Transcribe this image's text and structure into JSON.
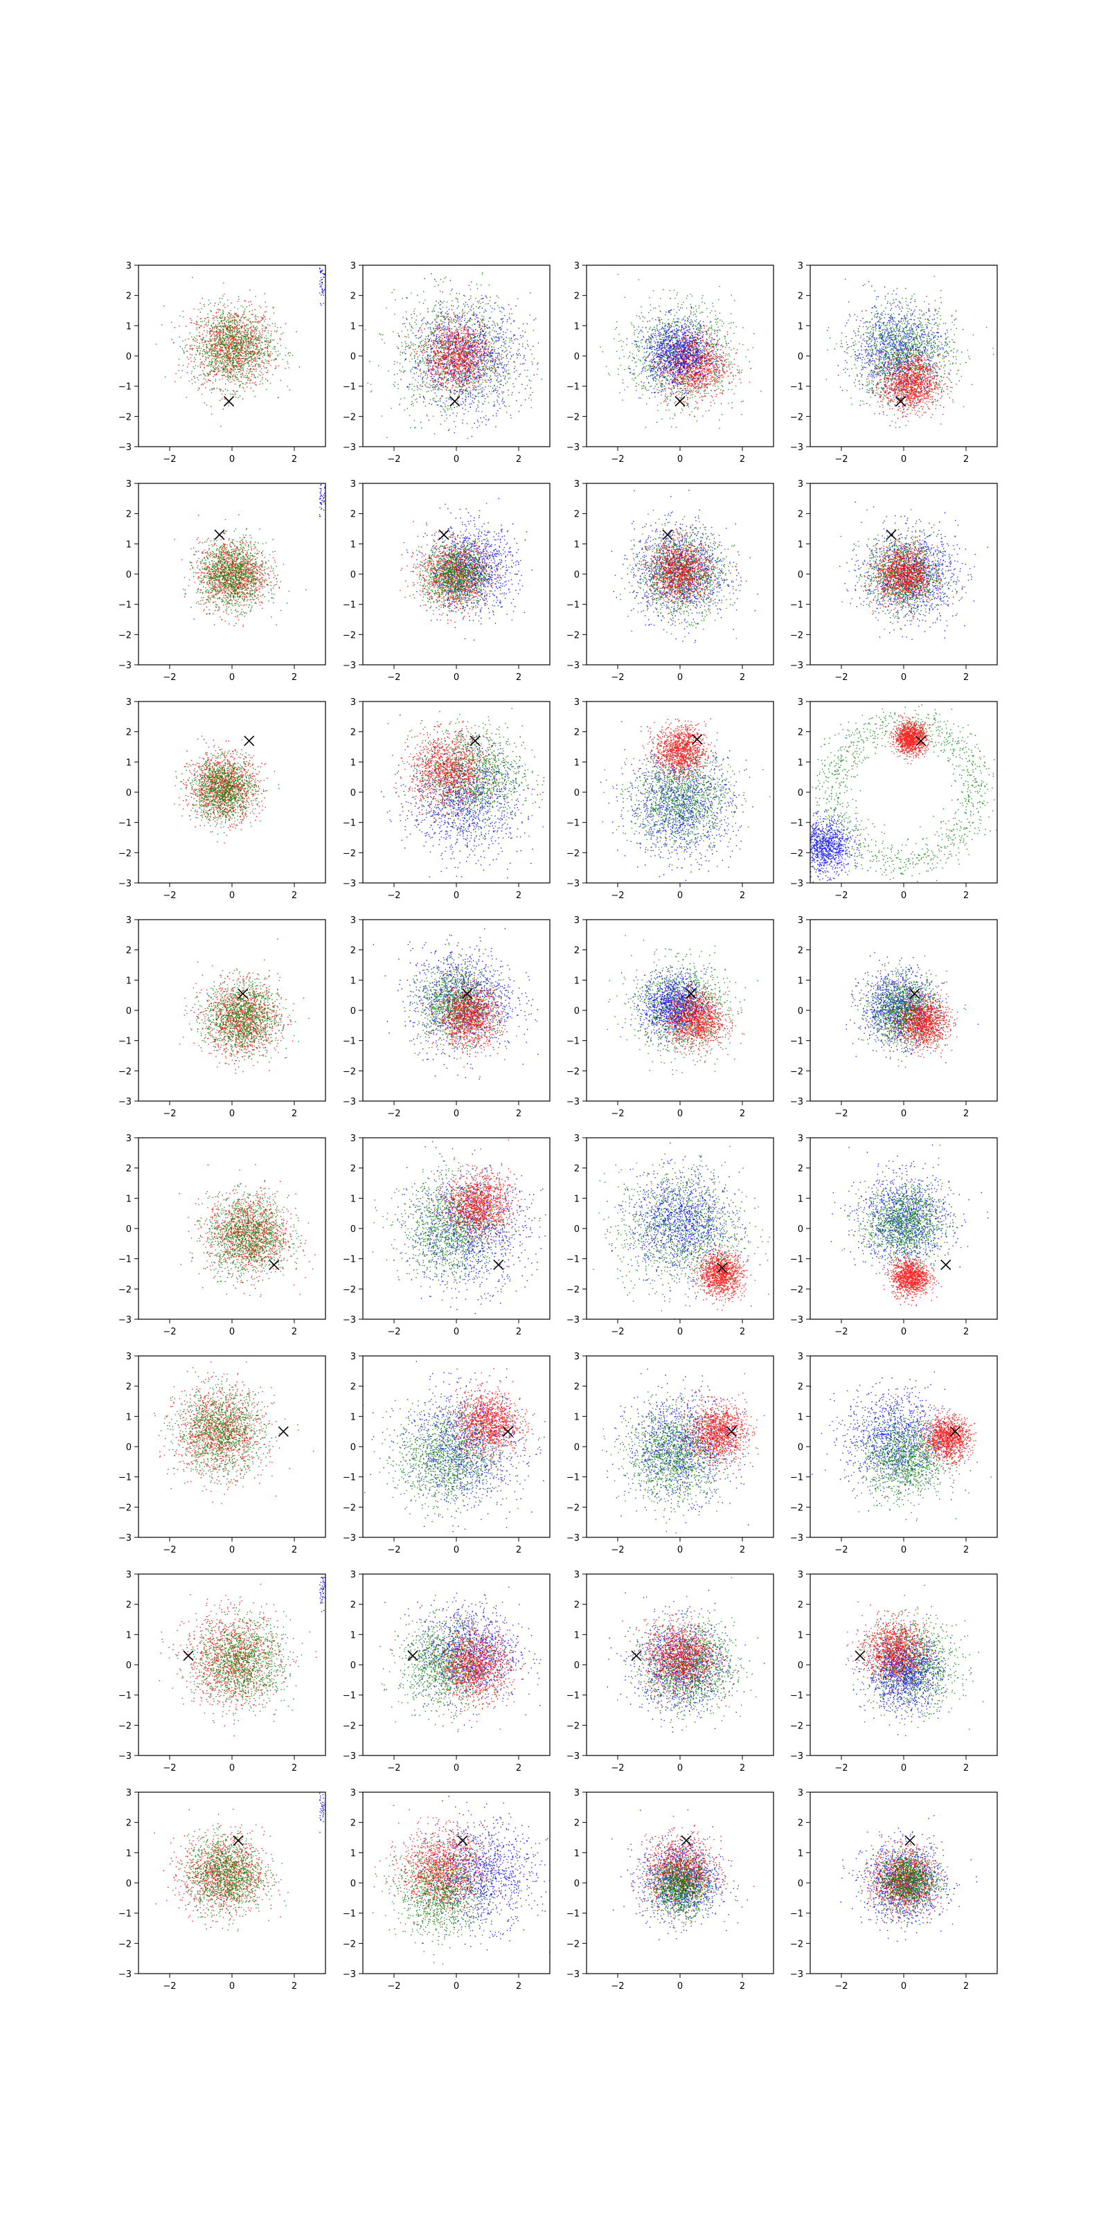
{
  "figure": {
    "rows": 8,
    "cols": 4,
    "xlim": [
      -3,
      3
    ],
    "ylim": [
      -3,
      3
    ],
    "xticks": [
      -2,
      0,
      2
    ],
    "yticks": [
      -3,
      -2,
      -1,
      0,
      1,
      2,
      3
    ],
    "xtick_labels": [
      "−2",
      "0",
      "2"
    ],
    "ytick_labels": [
      "−3",
      "−2",
      "−1",
      "0",
      "1",
      "2",
      "3"
    ],
    "colors": {
      "red": "#ff0000",
      "green": "#008000",
      "blue": "#0000ff",
      "marker": "#000000"
    }
  },
  "chart_data": [
    {
      "type": "scatter",
      "row": 1,
      "col": 1,
      "cross": [
        -0.1,
        -1.5
      ],
      "clusters": [
        {
          "color": "red",
          "center": [
            0.0,
            0.3
          ],
          "spread": 0.65
        },
        {
          "color": "green",
          "center": [
            0.0,
            0.3
          ],
          "spread": 0.65
        }
      ],
      "extra": "blue-corner"
    },
    {
      "type": "scatter",
      "row": 1,
      "col": 2,
      "cross": [
        -0.05,
        -1.5
      ],
      "clusters": [
        {
          "color": "green",
          "center": [
            0.0,
            0.0
          ],
          "spread": 1.0
        },
        {
          "color": "blue",
          "center": [
            0.3,
            0.0
          ],
          "spread": 0.9
        },
        {
          "color": "red",
          "center": [
            0.0,
            0.0
          ],
          "spread": 0.55
        }
      ]
    },
    {
      "type": "scatter",
      "row": 1,
      "col": 3,
      "cross": [
        0.0,
        -1.5
      ],
      "clusters": [
        {
          "color": "green",
          "center": [
            0.0,
            0.0
          ],
          "spread": 0.85
        },
        {
          "color": "red",
          "center": [
            0.4,
            -0.3
          ],
          "spread": 0.55
        },
        {
          "color": "blue",
          "center": [
            -0.1,
            0.1
          ],
          "spread": 0.55
        }
      ]
    },
    {
      "type": "scatter",
      "row": 1,
      "col": 4,
      "cross": [
        -0.1,
        -1.5
      ],
      "clusters": [
        {
          "color": "blue",
          "center": [
            -0.2,
            0.2
          ],
          "spread": 0.75
        },
        {
          "color": "green",
          "center": [
            0.0,
            0.0
          ],
          "spread": 0.8
        },
        {
          "color": "red",
          "center": [
            0.2,
            -0.9
          ],
          "spread": 0.45
        }
      ]
    },
    {
      "type": "scatter",
      "row": 2,
      "col": 1,
      "cross": [
        -0.4,
        1.3
      ],
      "clusters": [
        {
          "color": "red",
          "center": [
            0.0,
            0.0
          ],
          "spread": 0.55
        },
        {
          "color": "green",
          "center": [
            0.0,
            0.0
          ],
          "spread": 0.55
        }
      ],
      "extra": "blue-corner"
    },
    {
      "type": "scatter",
      "row": 2,
      "col": 2,
      "cross": [
        -0.4,
        1.3
      ],
      "clusters": [
        {
          "color": "blue",
          "center": [
            0.5,
            0.2
          ],
          "spread": 0.7
        },
        {
          "color": "red",
          "center": [
            -0.1,
            0.0
          ],
          "spread": 0.55
        },
        {
          "color": "green",
          "center": [
            0.0,
            0.0
          ],
          "spread": 0.5
        }
      ]
    },
    {
      "type": "scatter",
      "row": 2,
      "col": 3,
      "cross": [
        -0.4,
        1.3
      ],
      "clusters": [
        {
          "color": "blue",
          "center": [
            0.0,
            0.1
          ],
          "spread": 0.75
        },
        {
          "color": "green",
          "center": [
            0.0,
            0.0
          ],
          "spread": 0.7
        },
        {
          "color": "red",
          "center": [
            0.0,
            0.1
          ],
          "spread": 0.5
        }
      ]
    },
    {
      "type": "scatter",
      "row": 2,
      "col": 4,
      "cross": [
        -0.4,
        1.3
      ],
      "clusters": [
        {
          "color": "blue",
          "center": [
            0.2,
            0.0
          ],
          "spread": 0.75
        },
        {
          "color": "green",
          "center": [
            0.0,
            0.0
          ],
          "spread": 0.6
        },
        {
          "color": "red",
          "center": [
            0.0,
            0.0
          ],
          "spread": 0.45
        }
      ]
    },
    {
      "type": "scatter",
      "row": 3,
      "col": 1,
      "cross": [
        0.55,
        1.7
      ],
      "clusters": [
        {
          "color": "red",
          "center": [
            -0.3,
            0.2
          ],
          "spread": 0.55
        },
        {
          "color": "green",
          "center": [
            -0.3,
            0.1
          ],
          "spread": 0.5
        }
      ]
    },
    {
      "type": "scatter",
      "row": 3,
      "col": 2,
      "cross": [
        0.6,
        1.7
      ],
      "clusters": [
        {
          "color": "blue",
          "center": [
            0.3,
            -0.3
          ],
          "spread": 0.9
        },
        {
          "color": "green",
          "center": [
            0.5,
            0.6
          ],
          "spread": 0.8
        },
        {
          "color": "red",
          "center": [
            -0.3,
            0.7
          ],
          "spread": 0.6
        }
      ]
    },
    {
      "type": "scatter",
      "row": 3,
      "col": 3,
      "cross": [
        0.55,
        1.75
      ],
      "clusters": [
        {
          "color": "blue",
          "center": [
            0.0,
            -0.4
          ],
          "spread": 0.85
        },
        {
          "color": "green",
          "center": [
            0.0,
            -0.2
          ],
          "spread": 0.8
        },
        {
          "color": "red",
          "center": [
            0.0,
            1.4
          ],
          "spread": 0.4
        }
      ]
    },
    {
      "type": "scatter",
      "row": 3,
      "col": 4,
      "cross": [
        0.55,
        1.7
      ],
      "clusters": [
        {
          "color": "green",
          "ring": [
            0.0,
            0.0
          ],
          "radius": 2.3,
          "spread": 0.35
        },
        {
          "color": "blue",
          "center": [
            -2.6,
            -1.8
          ],
          "spread": 0.45
        },
        {
          "color": "red",
          "center": [
            0.2,
            1.8
          ],
          "spread": 0.25
        }
      ]
    },
    {
      "type": "scatter",
      "row": 4,
      "col": 1,
      "cross": [
        0.35,
        0.55
      ],
      "clusters": [
        {
          "color": "red",
          "center": [
            0.3,
            -0.3
          ],
          "spread": 0.6
        },
        {
          "color": "green",
          "center": [
            0.3,
            -0.2
          ],
          "spread": 0.6
        }
      ]
    },
    {
      "type": "scatter",
      "row": 4,
      "col": 2,
      "cross": [
        0.35,
        0.55
      ],
      "clusters": [
        {
          "color": "blue",
          "center": [
            0.2,
            0.4
          ],
          "spread": 0.85
        },
        {
          "color": "green",
          "center": [
            0.0,
            0.2
          ],
          "spread": 0.6
        },
        {
          "color": "red",
          "center": [
            0.4,
            -0.2
          ],
          "spread": 0.5
        }
      ]
    },
    {
      "type": "scatter",
      "row": 4,
      "col": 3,
      "cross": [
        0.35,
        0.55
      ],
      "clusters": [
        {
          "color": "green",
          "center": [
            0.0,
            0.1
          ],
          "spread": 0.75
        },
        {
          "color": "blue",
          "center": [
            -0.2,
            0.2
          ],
          "spread": 0.5
        },
        {
          "color": "red",
          "center": [
            0.5,
            -0.3
          ],
          "spread": 0.45
        }
      ]
    },
    {
      "type": "scatter",
      "row": 4,
      "col": 4,
      "cross": [
        0.35,
        0.55
      ],
      "clusters": [
        {
          "color": "blue",
          "center": [
            -0.2,
            0.1
          ],
          "spread": 0.6
        },
        {
          "color": "green",
          "center": [
            0.0,
            0.0
          ],
          "spread": 0.55
        },
        {
          "color": "red",
          "center": [
            0.6,
            -0.4
          ],
          "spread": 0.4
        }
      ]
    },
    {
      "type": "scatter",
      "row": 5,
      "col": 1,
      "cross": [
        1.35,
        -1.2
      ],
      "clusters": [
        {
          "color": "red",
          "center": [
            0.5,
            -0.2
          ],
          "spread": 0.65
        },
        {
          "color": "green",
          "center": [
            0.5,
            -0.2
          ],
          "spread": 0.65
        }
      ]
    },
    {
      "type": "scatter",
      "row": 5,
      "col": 2,
      "cross": [
        1.35,
        -1.2
      ],
      "clusters": [
        {
          "color": "blue",
          "center": [
            0.4,
            0.0
          ],
          "spread": 0.95
        },
        {
          "color": "green",
          "center": [
            -0.2,
            0.0
          ],
          "spread": 0.8
        },
        {
          "color": "red",
          "center": [
            0.7,
            0.8
          ],
          "spread": 0.5
        }
      ]
    },
    {
      "type": "scatter",
      "row": 5,
      "col": 3,
      "cross": [
        1.35,
        -1.3
      ],
      "clusters": [
        {
          "color": "green",
          "center": [
            0.0,
            0.0
          ],
          "spread": 1.0
        },
        {
          "color": "blue",
          "center": [
            0.0,
            0.2
          ],
          "spread": 0.8
        },
        {
          "color": "red",
          "center": [
            1.3,
            -1.5
          ],
          "spread": 0.35
        }
      ]
    },
    {
      "type": "scatter",
      "row": 5,
      "col": 4,
      "cross": [
        1.35,
        -1.2
      ],
      "clusters": [
        {
          "color": "blue",
          "center": [
            0.0,
            0.3
          ],
          "spread": 0.75
        },
        {
          "color": "green",
          "center": [
            0.0,
            0.2
          ],
          "spread": 0.6
        },
        {
          "color": "red",
          "center": [
            0.2,
            -1.6
          ],
          "spread": 0.3
        }
      ]
    },
    {
      "type": "scatter",
      "row": 6,
      "col": 1,
      "cross": [
        1.65,
        0.5
      ],
      "clusters": [
        {
          "color": "red",
          "center": [
            -0.4,
            0.5
          ],
          "spread": 0.7
        },
        {
          "color": "green",
          "center": [
            -0.4,
            0.5
          ],
          "spread": 0.7
        }
      ]
    },
    {
      "type": "scatter",
      "row": 6,
      "col": 2,
      "cross": [
        1.65,
        0.5
      ],
      "clusters": [
        {
          "color": "blue",
          "center": [
            0.2,
            0.0
          ],
          "spread": 0.95
        },
        {
          "color": "green",
          "center": [
            -0.3,
            -0.3
          ],
          "spread": 0.8
        },
        {
          "color": "red",
          "center": [
            1.0,
            0.8
          ],
          "spread": 0.5
        }
      ]
    },
    {
      "type": "scatter",
      "row": 6,
      "col": 3,
      "cross": [
        1.65,
        0.5
      ],
      "clusters": [
        {
          "color": "blue",
          "center": [
            0.0,
            0.0
          ],
          "spread": 0.85
        },
        {
          "color": "green",
          "center": [
            -0.2,
            -0.3
          ],
          "spread": 0.75
        },
        {
          "color": "red",
          "center": [
            1.2,
            0.5
          ],
          "spread": 0.45
        }
      ]
    },
    {
      "type": "scatter",
      "row": 6,
      "col": 4,
      "cross": [
        1.65,
        0.5
      ],
      "clusters": [
        {
          "color": "blue",
          "center": [
            -0.3,
            0.3
          ],
          "spread": 0.8
        },
        {
          "color": "green",
          "center": [
            0.0,
            -0.4
          ],
          "spread": 0.65
        },
        {
          "color": "red",
          "center": [
            1.4,
            0.3
          ],
          "spread": 0.35
        }
      ]
    },
    {
      "type": "scatter",
      "row": 7,
      "col": 1,
      "cross": [
        -1.4,
        0.3
      ],
      "clusters": [
        {
          "color": "red",
          "center": [
            0.0,
            0.2
          ],
          "spread": 0.75
        },
        {
          "color": "green",
          "center": [
            0.3,
            0.1
          ],
          "spread": 0.7
        }
      ],
      "extra": "blue-corner"
    },
    {
      "type": "scatter",
      "row": 7,
      "col": 2,
      "cross": [
        -1.4,
        0.3
      ],
      "clusters": [
        {
          "color": "blue",
          "center": [
            0.4,
            0.4
          ],
          "spread": 0.8
        },
        {
          "color": "green",
          "center": [
            -0.4,
            0.0
          ],
          "spread": 0.7
        },
        {
          "color": "red",
          "center": [
            0.6,
            0.0
          ],
          "spread": 0.55
        }
      ]
    },
    {
      "type": "scatter",
      "row": 7,
      "col": 3,
      "cross": [
        -1.4,
        0.3
      ],
      "clusters": [
        {
          "color": "blue",
          "center": [
            0.0,
            0.0
          ],
          "spread": 0.75
        },
        {
          "color": "green",
          "center": [
            0.3,
            -0.1
          ],
          "spread": 0.7
        },
        {
          "color": "red",
          "center": [
            0.0,
            0.3
          ],
          "spread": 0.55
        }
      ]
    },
    {
      "type": "scatter",
      "row": 7,
      "col": 4,
      "cross": [
        -1.4,
        0.3
      ],
      "clusters": [
        {
          "color": "green",
          "center": [
            0.3,
            0.0
          ],
          "spread": 0.7
        },
        {
          "color": "blue",
          "center": [
            0.0,
            -0.3
          ],
          "spread": 0.6
        },
        {
          "color": "red",
          "center": [
            -0.3,
            0.5
          ],
          "spread": 0.5
        }
      ]
    },
    {
      "type": "scatter",
      "row": 8,
      "col": 1,
      "cross": [
        0.2,
        1.4
      ],
      "clusters": [
        {
          "color": "red",
          "center": [
            -0.3,
            0.3
          ],
          "spread": 0.65
        },
        {
          "color": "green",
          "center": [
            -0.2,
            0.3
          ],
          "spread": 0.6
        }
      ],
      "extra": "blue-corner"
    },
    {
      "type": "scatter",
      "row": 8,
      "col": 2,
      "cross": [
        0.2,
        1.4
      ],
      "clusters": [
        {
          "color": "blue",
          "center": [
            0.8,
            0.3
          ],
          "spread": 0.85
        },
        {
          "color": "green",
          "center": [
            -0.5,
            -0.3
          ],
          "spread": 0.7
        },
        {
          "color": "red",
          "center": [
            -0.5,
            0.5
          ],
          "spread": 0.65
        }
      ]
    },
    {
      "type": "scatter",
      "row": 8,
      "col": 3,
      "cross": [
        0.2,
        1.4
      ],
      "clusters": [
        {
          "color": "blue",
          "center": [
            0.0,
            0.1
          ],
          "spread": 0.65
        },
        {
          "color": "red",
          "center": [
            0.0,
            0.4
          ],
          "spread": 0.55
        },
        {
          "color": "green",
          "center": [
            0.0,
            -0.1
          ],
          "spread": 0.45
        }
      ]
    },
    {
      "type": "scatter",
      "row": 8,
      "col": 4,
      "cross": [
        0.2,
        1.4
      ],
      "clusters": [
        {
          "color": "blue",
          "center": [
            0.0,
            0.0
          ],
          "spread": 0.65
        },
        {
          "color": "red",
          "center": [
            0.0,
            0.1
          ],
          "spread": 0.5
        },
        {
          "color": "green",
          "center": [
            0.1,
            0.1
          ],
          "spread": 0.45
        }
      ]
    }
  ]
}
